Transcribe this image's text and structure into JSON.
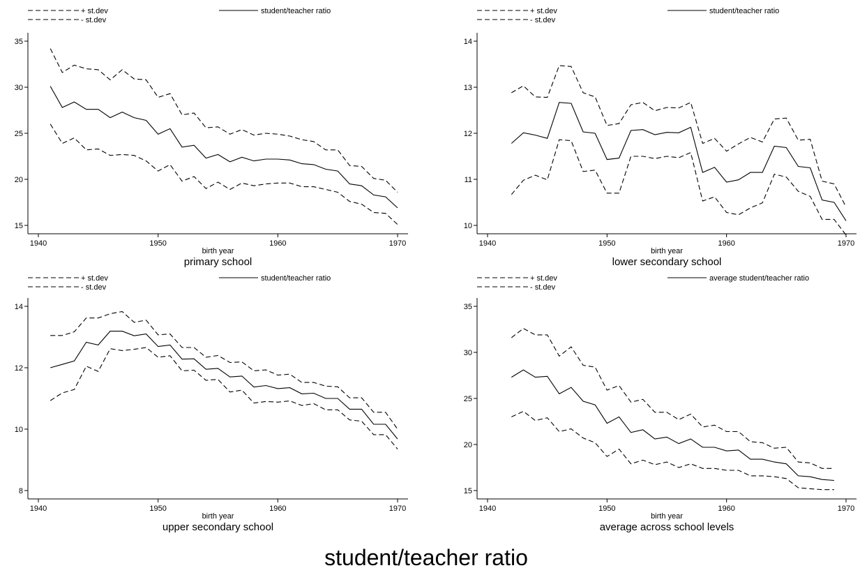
{
  "title": "student/teacher ratio",
  "chart_data": [
    {
      "type": "line",
      "title": "primary school",
      "xlabel": "birth year",
      "ylabel": "",
      "xlim": [
        1940,
        1970
      ],
      "ylim": [
        15,
        35
      ],
      "xticks": [
        "1940",
        "1950",
        "1960",
        "1970"
      ],
      "yticks": [
        "15",
        "20",
        "25",
        "30",
        "35"
      ],
      "legend": {
        "plus": "+ st.dev",
        "minus": "- st.dev",
        "main": "student/teacher ratio"
      },
      "x": [
        1941,
        1942,
        1943,
        1944,
        1945,
        1946,
        1947,
        1948,
        1949,
        1950,
        1951,
        1952,
        1953,
        1954,
        1955,
        1956,
        1957,
        1958,
        1959,
        1960,
        1961,
        1962,
        1963,
        1964,
        1965,
        1966,
        1967,
        1968,
        1969,
        1970
      ],
      "series": [
        {
          "name": "+ st.dev",
          "style": "dashed",
          "values": [
            34.2,
            31.6,
            32.4,
            32.0,
            31.9,
            30.8,
            31.9,
            30.9,
            30.8,
            28.9,
            29.3,
            27.0,
            27.2,
            25.6,
            25.7,
            24.9,
            25.4,
            24.8,
            25.0,
            24.9,
            24.7,
            24.3,
            24.1,
            23.2,
            23.2,
            21.5,
            21.4,
            20.1,
            19.9,
            18.6
          ]
        },
        {
          "name": "student/teacher ratio",
          "style": "solid",
          "values": [
            30.1,
            27.8,
            28.4,
            27.6,
            27.6,
            26.7,
            27.3,
            26.7,
            26.4,
            24.9,
            25.5,
            23.5,
            23.7,
            22.3,
            22.7,
            21.9,
            22.4,
            22.0,
            22.2,
            22.2,
            22.1,
            21.7,
            21.6,
            21.1,
            20.9,
            19.5,
            19.3,
            18.3,
            18.1,
            16.9
          ]
        },
        {
          "name": "- st.dev",
          "style": "dashed",
          "values": [
            26.0,
            23.9,
            24.5,
            23.2,
            23.3,
            22.6,
            22.7,
            22.6,
            22.0,
            20.9,
            21.6,
            19.8,
            20.3,
            19.0,
            19.7,
            18.9,
            19.6,
            19.3,
            19.5,
            19.6,
            19.6,
            19.2,
            19.2,
            18.9,
            18.6,
            17.6,
            17.3,
            16.4,
            16.3,
            15.1
          ]
        }
      ]
    },
    {
      "type": "line",
      "title": "lower secondary school",
      "xlabel": "birth year",
      "ylabel": "",
      "xlim": [
        1940,
        1970
      ],
      "ylim": [
        10,
        14
      ],
      "xticks": [
        "1940",
        "1950",
        "1960",
        "1970"
      ],
      "yticks": [
        "10",
        "11",
        "12",
        "13",
        "14"
      ],
      "legend": {
        "plus": "+ st.dev",
        "minus": "- st.dev",
        "main": "student/teacher ratio"
      },
      "x": [
        1942,
        1943,
        1944,
        1945,
        1946,
        1947,
        1948,
        1949,
        1950,
        1951,
        1952,
        1953,
        1954,
        1955,
        1956,
        1957,
        1958,
        1959,
        1960,
        1961,
        1962,
        1963,
        1964,
        1965,
        1966,
        1967,
        1968,
        1969,
        1970
      ],
      "series": [
        {
          "name": "+ st.dev",
          "style": "dashed",
          "values": [
            12.88,
            13.03,
            12.79,
            12.78,
            13.47,
            13.45,
            12.88,
            12.79,
            12.17,
            12.21,
            12.62,
            12.67,
            12.49,
            12.56,
            12.55,
            12.67,
            11.78,
            11.89,
            11.61,
            11.77,
            11.91,
            11.81,
            12.31,
            12.33,
            11.85,
            11.87,
            10.96,
            10.9,
            10.4
          ]
        },
        {
          "name": "student/teacher ratio",
          "style": "solid",
          "values": [
            11.78,
            12.01,
            11.96,
            11.89,
            12.67,
            12.65,
            12.03,
            12.0,
            11.43,
            11.46,
            12.06,
            12.08,
            11.97,
            12.02,
            12.01,
            12.13,
            11.15,
            11.26,
            10.94,
            10.99,
            11.15,
            11.15,
            11.72,
            11.69,
            11.28,
            11.25,
            10.55,
            10.5,
            10.1
          ]
        },
        {
          "name": "- st.dev",
          "style": "dashed",
          "values": [
            10.67,
            10.98,
            11.09,
            10.99,
            11.86,
            11.84,
            11.17,
            11.2,
            10.7,
            10.7,
            11.5,
            11.5,
            11.45,
            11.5,
            11.47,
            11.58,
            10.53,
            10.62,
            10.28,
            10.23,
            10.38,
            10.49,
            11.11,
            11.05,
            10.74,
            10.63,
            10.13,
            10.13,
            9.79
          ]
        }
      ]
    },
    {
      "type": "line",
      "title": "upper secondary school",
      "xlabel": "birth year",
      "ylabel": "",
      "xlim": [
        1940,
        1970
      ],
      "ylim": [
        8,
        14
      ],
      "xticks": [
        "1940",
        "1950",
        "1960",
        "1970"
      ],
      "yticks": [
        "8",
        "10",
        "12",
        "14"
      ],
      "legend": {
        "plus": "+ st.dev",
        "minus": "- st.dev",
        "main": "student/teacher ratio"
      },
      "x": [
        1941,
        1942,
        1943,
        1944,
        1945,
        1946,
        1947,
        1948,
        1949,
        1950,
        1951,
        1952,
        1953,
        1954,
        1955,
        1956,
        1957,
        1958,
        1959,
        1960,
        1961,
        1962,
        1963,
        1964,
        1965,
        1966,
        1967,
        1968,
        1969,
        1970
      ],
      "series": [
        {
          "name": "+ st.dev",
          "style": "dashed",
          "values": [
            13.05,
            13.05,
            13.17,
            13.62,
            13.62,
            13.76,
            13.83,
            13.48,
            13.55,
            13.07,
            13.1,
            12.66,
            12.66,
            12.34,
            12.4,
            12.17,
            12.19,
            11.9,
            11.93,
            11.76,
            11.79,
            11.52,
            11.52,
            11.4,
            11.38,
            11.02,
            11.02,
            10.55,
            10.55,
            10.0
          ]
        },
        {
          "name": "student/teacher ratio",
          "style": "solid",
          "values": [
            12.0,
            12.11,
            12.22,
            12.83,
            12.74,
            13.19,
            13.19,
            13.04,
            13.1,
            12.69,
            12.74,
            12.28,
            12.29,
            11.95,
            11.98,
            11.7,
            11.73,
            11.37,
            11.42,
            11.32,
            11.35,
            11.15,
            11.17,
            11.0,
            11.0,
            10.65,
            10.65,
            10.16,
            10.16,
            9.68
          ]
        },
        {
          "name": "- st.dev",
          "style": "dashed",
          "values": [
            10.93,
            11.18,
            11.29,
            12.05,
            11.88,
            12.62,
            12.56,
            12.6,
            12.66,
            12.34,
            12.39,
            11.9,
            11.92,
            11.59,
            11.62,
            11.21,
            11.27,
            10.85,
            10.9,
            10.88,
            10.92,
            10.77,
            10.83,
            10.63,
            10.63,
            10.3,
            10.26,
            9.82,
            9.82,
            9.35
          ]
        }
      ]
    },
    {
      "type": "line",
      "title": "average across school levels",
      "xlabel": "birth year",
      "ylabel": "",
      "xlim": [
        1940,
        1970
      ],
      "ylim": [
        15,
        35
      ],
      "xticks": [
        "1940",
        "1950",
        "1960",
        "1970"
      ],
      "yticks": [
        "15",
        "20",
        "25",
        "30",
        "35"
      ],
      "legend": {
        "plus": "+ st.dev",
        "minus": "- st.dev",
        "main": "average student/teacher ratio"
      },
      "x": [
        1942,
        1943,
        1944,
        1945,
        1946,
        1947,
        1948,
        1949,
        1950,
        1951,
        1952,
        1953,
        1954,
        1955,
        1956,
        1957,
        1958,
        1959,
        1960,
        1961,
        1962,
        1963,
        1964,
        1965,
        1966,
        1967,
        1968,
        1969
      ],
      "series": [
        {
          "name": "+ st.dev",
          "style": "dashed",
          "values": [
            31.6,
            32.6,
            31.9,
            31.9,
            29.6,
            30.6,
            28.6,
            28.4,
            25.9,
            26.4,
            24.6,
            24.9,
            23.5,
            23.5,
            22.7,
            23.3,
            21.9,
            22.1,
            21.4,
            21.4,
            20.3,
            20.2,
            19.6,
            19.7,
            18.1,
            18.0,
            17.4,
            17.4
          ]
        },
        {
          "name": "average student/teacher ratio",
          "style": "solid",
          "values": [
            27.3,
            28.1,
            27.3,
            27.4,
            25.5,
            26.2,
            24.7,
            24.3,
            22.3,
            23.0,
            21.3,
            21.6,
            20.6,
            20.8,
            20.1,
            20.6,
            19.7,
            19.7,
            19.3,
            19.4,
            18.4,
            18.4,
            18.1,
            17.9,
            16.6,
            16.5,
            16.2,
            16.1
          ]
        },
        {
          "name": "- st.dev",
          "style": "dashed",
          "values": [
            23.0,
            23.6,
            22.6,
            22.9,
            21.4,
            21.7,
            20.7,
            20.2,
            18.7,
            19.5,
            17.9,
            18.3,
            17.8,
            18.1,
            17.5,
            17.9,
            17.4,
            17.4,
            17.2,
            17.2,
            16.6,
            16.6,
            16.5,
            16.3,
            15.3,
            15.2,
            15.1,
            15.1
          ]
        }
      ]
    }
  ]
}
